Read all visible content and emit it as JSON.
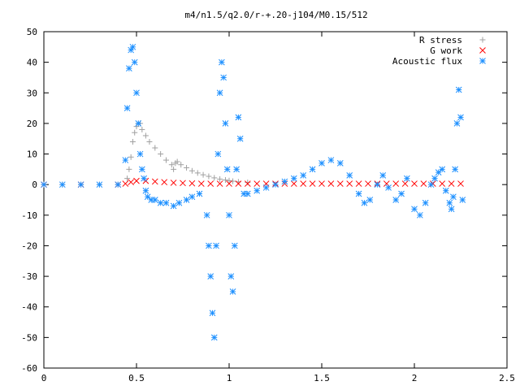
{
  "chart_data": {
    "type": "scatter",
    "title": "m4/n1.5/q2.0/r-+.20-j104/M0.15/512",
    "xlabel": "",
    "ylabel": "",
    "xlim": [
      0,
      2.5
    ],
    "ylim": [
      -60,
      50
    ],
    "xticks": [
      0,
      0.5,
      1,
      1.5,
      2,
      2.5
    ],
    "xtick_labels": [
      "0",
      "0.5",
      "1",
      "1.5",
      "2",
      "2.5"
    ],
    "yticks": [
      -60,
      -50,
      -40,
      -30,
      -20,
      -10,
      0,
      10,
      20,
      30,
      40,
      50
    ],
    "ytick_labels": [
      "-60",
      "-50",
      "-40",
      "-30",
      "-20",
      "-10",
      "0",
      "10",
      "20",
      "30",
      "40",
      "50"
    ],
    "grid": false,
    "legend_position": "top-right",
    "series": [
      {
        "name": "R stress",
        "marker": "plus",
        "color": "#a0a0a0",
        "x": [
          0.0,
          0.1,
          0.2,
          0.3,
          0.4,
          0.45,
          0.46,
          0.47,
          0.48,
          0.49,
          0.5,
          0.51,
          0.52,
          0.53,
          0.55,
          0.57,
          0.6,
          0.63,
          0.66,
          0.69,
          0.7,
          0.71,
          0.72,
          0.74,
          0.77,
          0.8,
          0.83,
          0.86,
          0.89,
          0.92,
          0.95,
          0.98,
          1.0,
          1.02,
          1.05,
          1.1
        ],
        "y": [
          0,
          0,
          0,
          0,
          0,
          2,
          5,
          9,
          14,
          17,
          19,
          20,
          20,
          18,
          16,
          14,
          12,
          10,
          8,
          6.5,
          5,
          7,
          7.5,
          6.5,
          5.5,
          4.5,
          3.8,
          3.2,
          2.7,
          2.2,
          1.8,
          1.5,
          1.3,
          1.1,
          0.9,
          0.7
        ]
      },
      {
        "name": "G work",
        "marker": "cross",
        "color": "#ff0000",
        "x": [
          0.0,
          0.2,
          0.4,
          0.44,
          0.47,
          0.5,
          0.55,
          0.6,
          0.65,
          0.7,
          0.75,
          0.8,
          0.85,
          0.9,
          0.95,
          1.0,
          1.05,
          1.1,
          1.15,
          1.2,
          1.25,
          1.3,
          1.35,
          1.4,
          1.45,
          1.5,
          1.55,
          1.6,
          1.65,
          1.7,
          1.75,
          1.8,
          1.85,
          1.9,
          1.95,
          2.0,
          2.05,
          2.1,
          2.15,
          2.2,
          2.25
        ],
        "y": [
          0,
          0,
          0,
          0.3,
          0.8,
          1.2,
          1.2,
          1.0,
          0.8,
          0.6,
          0.5,
          0.4,
          0.3,
          0.3,
          0.3,
          0.3,
          0.3,
          0.3,
          0.3,
          0.3,
          0.3,
          0.3,
          0.3,
          0.3,
          0.3,
          0.3,
          0.3,
          0.3,
          0.3,
          0.3,
          0.3,
          0.3,
          0.3,
          0.3,
          0.3,
          0.3,
          0.3,
          0.3,
          0.3,
          0.3,
          0.3
        ]
      },
      {
        "name": "Acoustic flux",
        "marker": "star",
        "color": "#1e90ff",
        "x": [
          0.0,
          0.1,
          0.2,
          0.3,
          0.4,
          0.44,
          0.45,
          0.46,
          0.47,
          0.48,
          0.49,
          0.5,
          0.51,
          0.52,
          0.53,
          0.54,
          0.55,
          0.56,
          0.58,
          0.6,
          0.63,
          0.66,
          0.7,
          0.73,
          0.77,
          0.8,
          0.84,
          0.88,
          0.89,
          0.9,
          0.91,
          0.92,
          0.93,
          0.94,
          0.95,
          0.96,
          0.97,
          0.98,
          0.99,
          1.0,
          1.01,
          1.02,
          1.03,
          1.04,
          1.05,
          1.06,
          1.08,
          1.1,
          1.15,
          1.2,
          1.25,
          1.3,
          1.35,
          1.4,
          1.45,
          1.5,
          1.55,
          1.6,
          1.65,
          1.7,
          1.73,
          1.76,
          1.8,
          1.83,
          1.86,
          1.9,
          1.93,
          1.96,
          2.0,
          2.03,
          2.06,
          2.09,
          2.11,
          2.13,
          2.15,
          2.17,
          2.19,
          2.2,
          2.21,
          2.22,
          2.23,
          2.24,
          2.25,
          2.26
        ],
        "y": [
          0,
          0,
          0,
          0,
          0,
          8,
          25,
          38,
          44,
          45,
          40,
          30,
          20,
          10,
          5,
          2,
          -2,
          -4,
          -5,
          -5,
          -6,
          -6,
          -7,
          -6,
          -5,
          -4,
          -3,
          -10,
          -20,
          -30,
          -42,
          -50,
          -20,
          10,
          30,
          40,
          35,
          20,
          5,
          -10,
          -30,
          -35,
          -20,
          5,
          22,
          15,
          -3,
          -3,
          -2,
          -1,
          0,
          1,
          2,
          3,
          5,
          7,
          8,
          7,
          3,
          -3,
          -6,
          -5,
          0,
          3,
          -1,
          -5,
          -3,
          2,
          -8,
          -10,
          -6,
          0,
          2,
          4,
          5,
          -2,
          -6,
          -8,
          -4,
          5,
          20,
          31,
          22,
          -5
        ]
      }
    ]
  }
}
